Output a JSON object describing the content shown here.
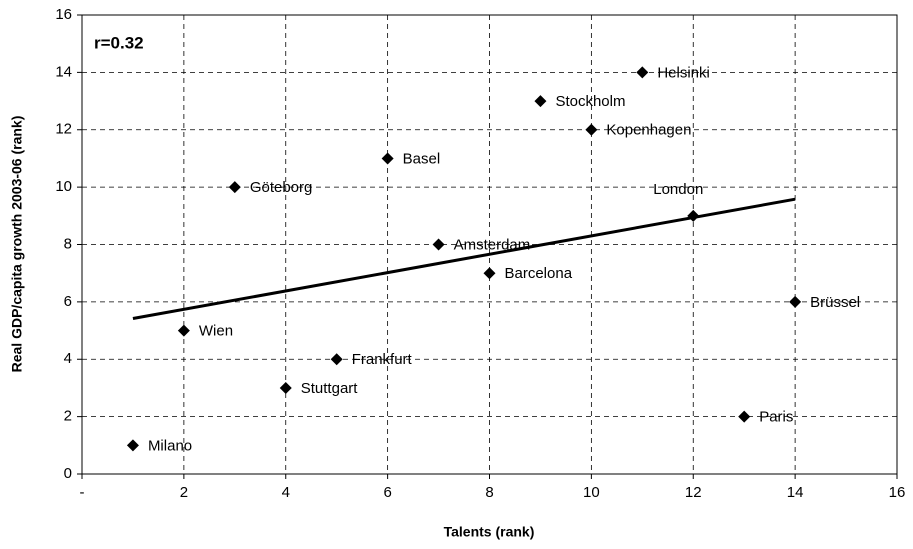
{
  "chart_data": {
    "type": "scatter",
    "annotation": "r=0.32",
    "xlabel": "Talents (rank)",
    "ylabel": "Real GDP/capita growth 2003-06 (rank)",
    "labels": [
      "Milano",
      "Wien",
      "Göteborg",
      "Stuttgart",
      "Frankfurt",
      "Basel",
      "Amsterdam",
      "Barcelona",
      "Stockholm",
      "Kopenhagen",
      "Helsinki",
      "London",
      "Paris",
      "Brüssel"
    ],
    "x": [
      1,
      2,
      3,
      4,
      5,
      6,
      7,
      8,
      9,
      10,
      11,
      12,
      13,
      14
    ],
    "values": [
      1,
      5,
      10,
      3,
      4,
      11,
      8,
      7,
      13,
      12,
      14,
      9,
      2,
      6
    ],
    "color": "#000000",
    "trendline": {
      "x": [
        1,
        14
      ],
      "values": [
        5.42,
        9.58
      ]
    },
    "xlim": [
      0,
      16
    ],
    "ylim": [
      0,
      16
    ],
    "xticks": [
      {
        "value": 0,
        "label": "-"
      },
      2,
      4,
      6,
      8,
      10,
      12,
      14,
      16
    ],
    "yticks": [
      0,
      2,
      4,
      6,
      8,
      10,
      12,
      14,
      16
    ],
    "grid": true
  }
}
